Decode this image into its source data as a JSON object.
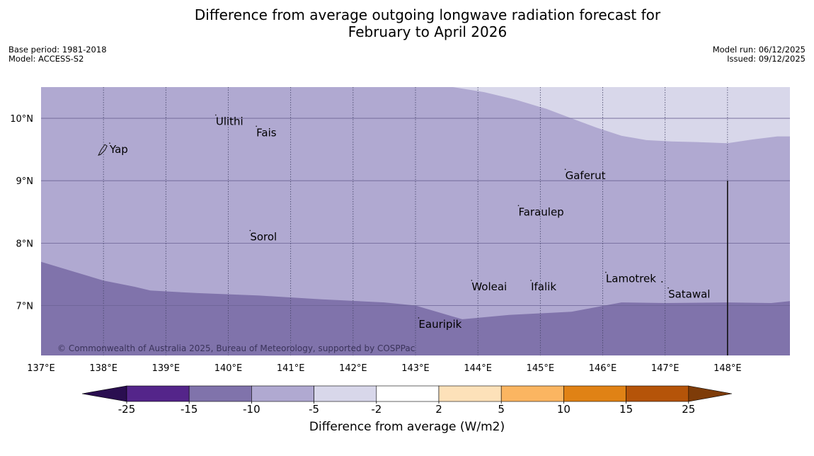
{
  "title": {
    "line1": "Difference from average outgoing longwave radiation forecast for",
    "line2": "February to April 2026"
  },
  "meta_left": {
    "base_period": "Base period: 1981-2018",
    "model": "Model: ACCESS-S2"
  },
  "meta_right": {
    "model_run": "Model run: 06/12/2025",
    "issued": "Issued: 09/12/2025"
  },
  "map": {
    "lon_range": [
      137,
      149
    ],
    "lat_range": [
      6.2,
      10.5
    ],
    "x_ticks": [
      137,
      138,
      139,
      140,
      141,
      142,
      143,
      144,
      145,
      146,
      147,
      148
    ],
    "x_tick_labels": [
      "137°E",
      "138°E",
      "139°E",
      "140°E",
      "141°E",
      "142°E",
      "143°E",
      "144°E",
      "145°E",
      "146°E",
      "147°E",
      "148°E"
    ],
    "y_ticks": [
      7,
      8,
      9,
      10
    ],
    "y_tick_labels": [
      "7°N",
      "8°N",
      "9°N",
      "10°N"
    ],
    "places": [
      {
        "name": "Yap",
        "lon": 138.1,
        "lat": 9.5
      },
      {
        "name": "Ulithi",
        "lon": 139.8,
        "lat": 9.95
      },
      {
        "name": "Fais",
        "lon": 140.45,
        "lat": 9.77
      },
      {
        "name": "Gaferut",
        "lon": 145.4,
        "lat": 9.08
      },
      {
        "name": "Faraulep",
        "lon": 144.65,
        "lat": 8.5
      },
      {
        "name": "Sorol",
        "lon": 140.35,
        "lat": 8.1
      },
      {
        "name": "Woleai",
        "lon": 143.9,
        "lat": 7.3
      },
      {
        "name": "Ifalik",
        "lon": 144.85,
        "lat": 7.3
      },
      {
        "name": "Lamotrek",
        "lon": 146.05,
        "lat": 7.43
      },
      {
        "name": "Satawal",
        "lon": 147.05,
        "lat": 7.18
      },
      {
        "name": "Eauripik",
        "lon": 143.05,
        "lat": 6.7
      }
    ],
    "boundary_line": {
      "lon": 148.0,
      "lat_top": 9.0,
      "lat_bottom": 6.2
    },
    "dark_region_edge": [
      [
        137,
        7.7
      ],
      [
        137.5,
        7.55
      ],
      [
        138,
        7.4
      ],
      [
        138.5,
        7.3
      ],
      [
        138.75,
        7.24
      ],
      [
        139.5,
        7.2
      ],
      [
        140.5,
        7.16
      ],
      [
        141.5,
        7.1
      ],
      [
        142.5,
        7.05
      ],
      [
        143,
        7.0
      ],
      [
        143.75,
        6.78
      ],
      [
        144.5,
        6.85
      ],
      [
        145.5,
        6.9
      ],
      [
        146.3,
        7.05
      ],
      [
        147,
        7.04
      ],
      [
        148,
        7.05
      ],
      [
        148.7,
        7.04
      ],
      [
        149,
        7.07
      ]
    ],
    "light_region_edge": [
      [
        143.6,
        10.5
      ],
      [
        144.1,
        10.42
      ],
      [
        144.6,
        10.3
      ],
      [
        145.1,
        10.15
      ],
      [
        145.5,
        10.0
      ],
      [
        145.9,
        9.85
      ],
      [
        146.3,
        9.72
      ],
      [
        146.7,
        9.65
      ],
      [
        147.1,
        9.63
      ],
      [
        147.5,
        9.62
      ],
      [
        148,
        9.6
      ],
      [
        148.4,
        9.66
      ],
      [
        148.8,
        9.71
      ],
      [
        149,
        9.71
      ]
    ],
    "fill_colors": {
      "dark": "#8073ab",
      "mid": "#b0a9d1",
      "light": "#d8d7ea"
    },
    "copyright": "© Commonwealth of Australia 2025, Bureau of Meteorology, supported by COSPPac"
  },
  "colorbar": {
    "colors": [
      "#2a0e50",
      "#54258a",
      "#8073ab",
      "#b0a9d1",
      "#d8d7ea",
      "#ffffff",
      "#fde1b9",
      "#fbb561",
      "#e08215",
      "#b55409",
      "#7e3c09"
    ],
    "ticks": [
      "-25",
      "-15",
      "-10",
      "-5",
      "-2",
      "2",
      "5",
      "10",
      "15",
      "25"
    ],
    "label": "Difference from average (W/m2)"
  }
}
